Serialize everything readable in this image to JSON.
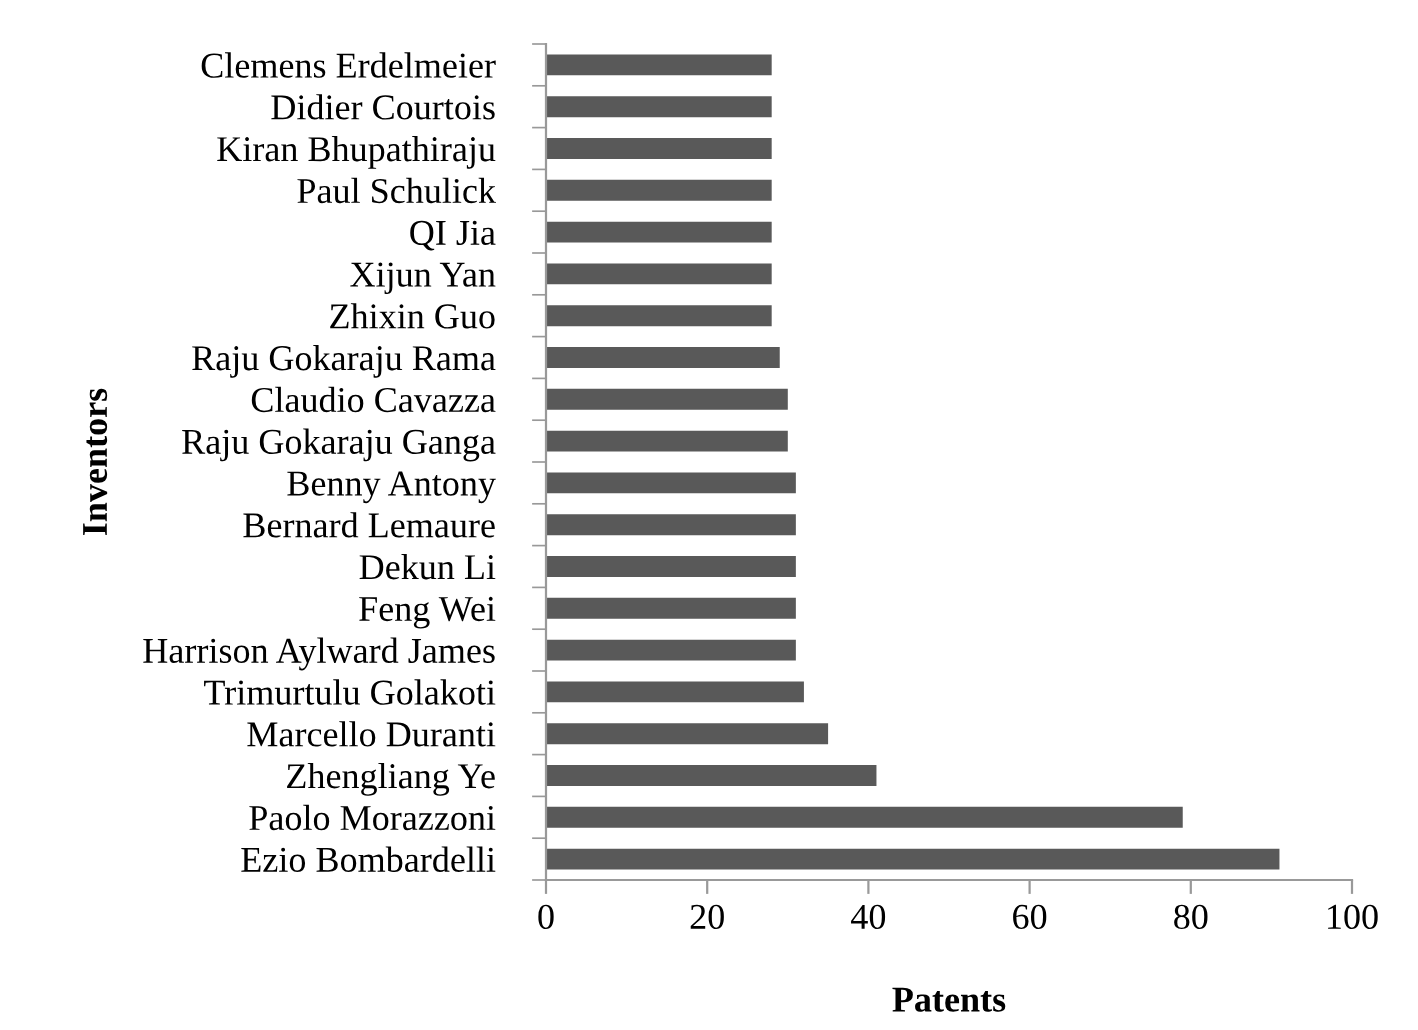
{
  "chart_data": {
    "type": "bar",
    "orientation": "horizontal",
    "xlabel": "Patents",
    "ylabel": "Inventors",
    "categories": [
      "Clemens Erdelmeier",
      "Didier Courtois",
      "Kiran Bhupathiraju",
      "Paul Schulick",
      "QI Jia",
      "Xijun Yan",
      "Zhixin Guo",
      "Raju Gokaraju Rama",
      "Claudio Cavazza",
      "Raju Gokaraju Ganga",
      "Benny Antony",
      "Bernard Lemaure",
      "Dekun Li",
      "Feng Wei",
      "Harrison Aylward James",
      "Trimurtulu Golakoti",
      "Marcello Duranti",
      "Zhengliang Ye",
      "Paolo Morazzoni",
      "Ezio Bombardelli"
    ],
    "values": [
      28,
      28,
      28,
      28,
      28,
      28,
      28,
      29,
      30,
      30,
      31,
      31,
      31,
      31,
      31,
      32,
      35,
      41,
      79,
      91
    ],
    "color": "#595959",
    "xlim": [
      0,
      100
    ],
    "xticks": [
      0,
      20,
      40,
      60,
      80,
      100
    ],
    "grid": false,
    "legend": false
  }
}
